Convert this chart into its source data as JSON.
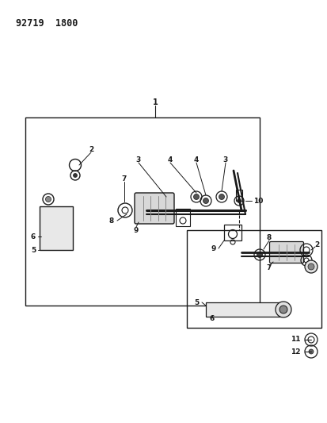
{
  "title_text": "92719  1800",
  "bg_color": "#ffffff",
  "line_color": "#1a1a1a",
  "fig_width": 4.14,
  "fig_height": 5.33,
  "dpi": 100
}
